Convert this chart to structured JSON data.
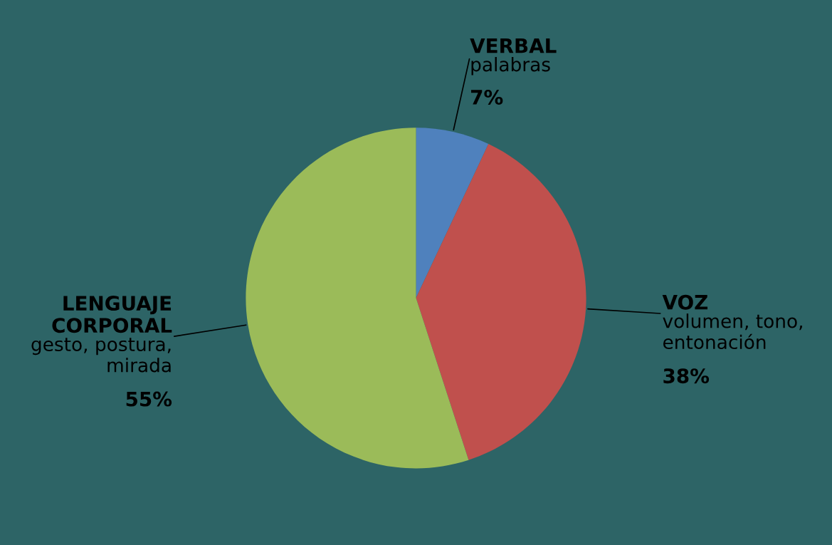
{
  "chart_data": {
    "type": "pie",
    "categories": [
      "VERBAL\npalabras",
      "VOZ\nvolumen, tono,\nentonación",
      "LENGUAJE\nCORPORAL\ngesto, postura,\nmirada"
    ],
    "values": [
      7,
      38,
      55
    ],
    "value_labels": [
      "7%",
      "38%",
      "55%"
    ],
    "colors": [
      "#4f81bd",
      "#c0504d",
      "#9bbb59"
    ],
    "legend": false
  }
}
